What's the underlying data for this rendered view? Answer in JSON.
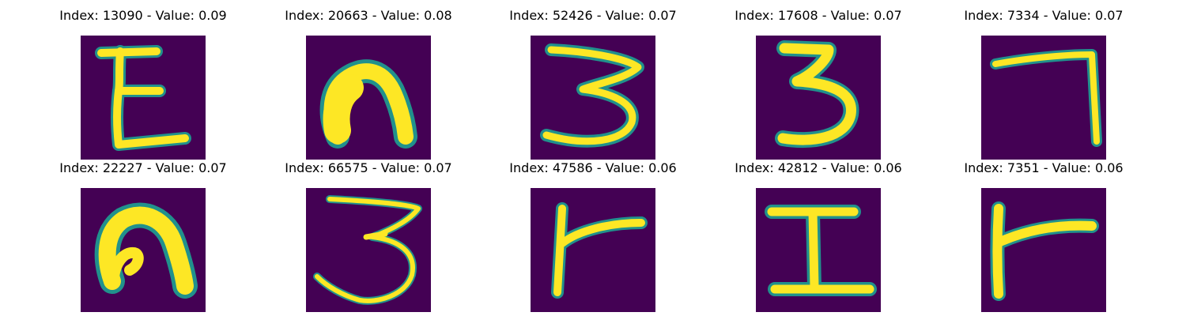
{
  "colors": {
    "background": "#440154",
    "stroke_core": "#fde725",
    "stroke_edge": "#21918c"
  },
  "panels": [
    {
      "title": "Index: 13090 - Value: 0.09",
      "glyph": "E-shape"
    },
    {
      "title": "Index: 20663 - Value: 0.08",
      "glyph": "arch-shape"
    },
    {
      "title": "Index: 52426 - Value: 0.07",
      "glyph": "three-shape"
    },
    {
      "title": "Index: 17608 - Value: 0.07",
      "glyph": "three-shape"
    },
    {
      "title": "Index: 7334 - Value: 0.07",
      "glyph": "seven-shape"
    },
    {
      "title": "Index: 22227 - Value: 0.07",
      "glyph": "arch-shape"
    },
    {
      "title": "Index: 66575 - Value: 0.07",
      "glyph": "three-shape"
    },
    {
      "title": "Index: 47586 - Value: 0.06",
      "glyph": "r-shape"
    },
    {
      "title": "Index: 42812 - Value: 0.06",
      "glyph": "I-shape"
    },
    {
      "title": "Index: 7351 - Value: 0.06",
      "glyph": "r-shape"
    }
  ]
}
